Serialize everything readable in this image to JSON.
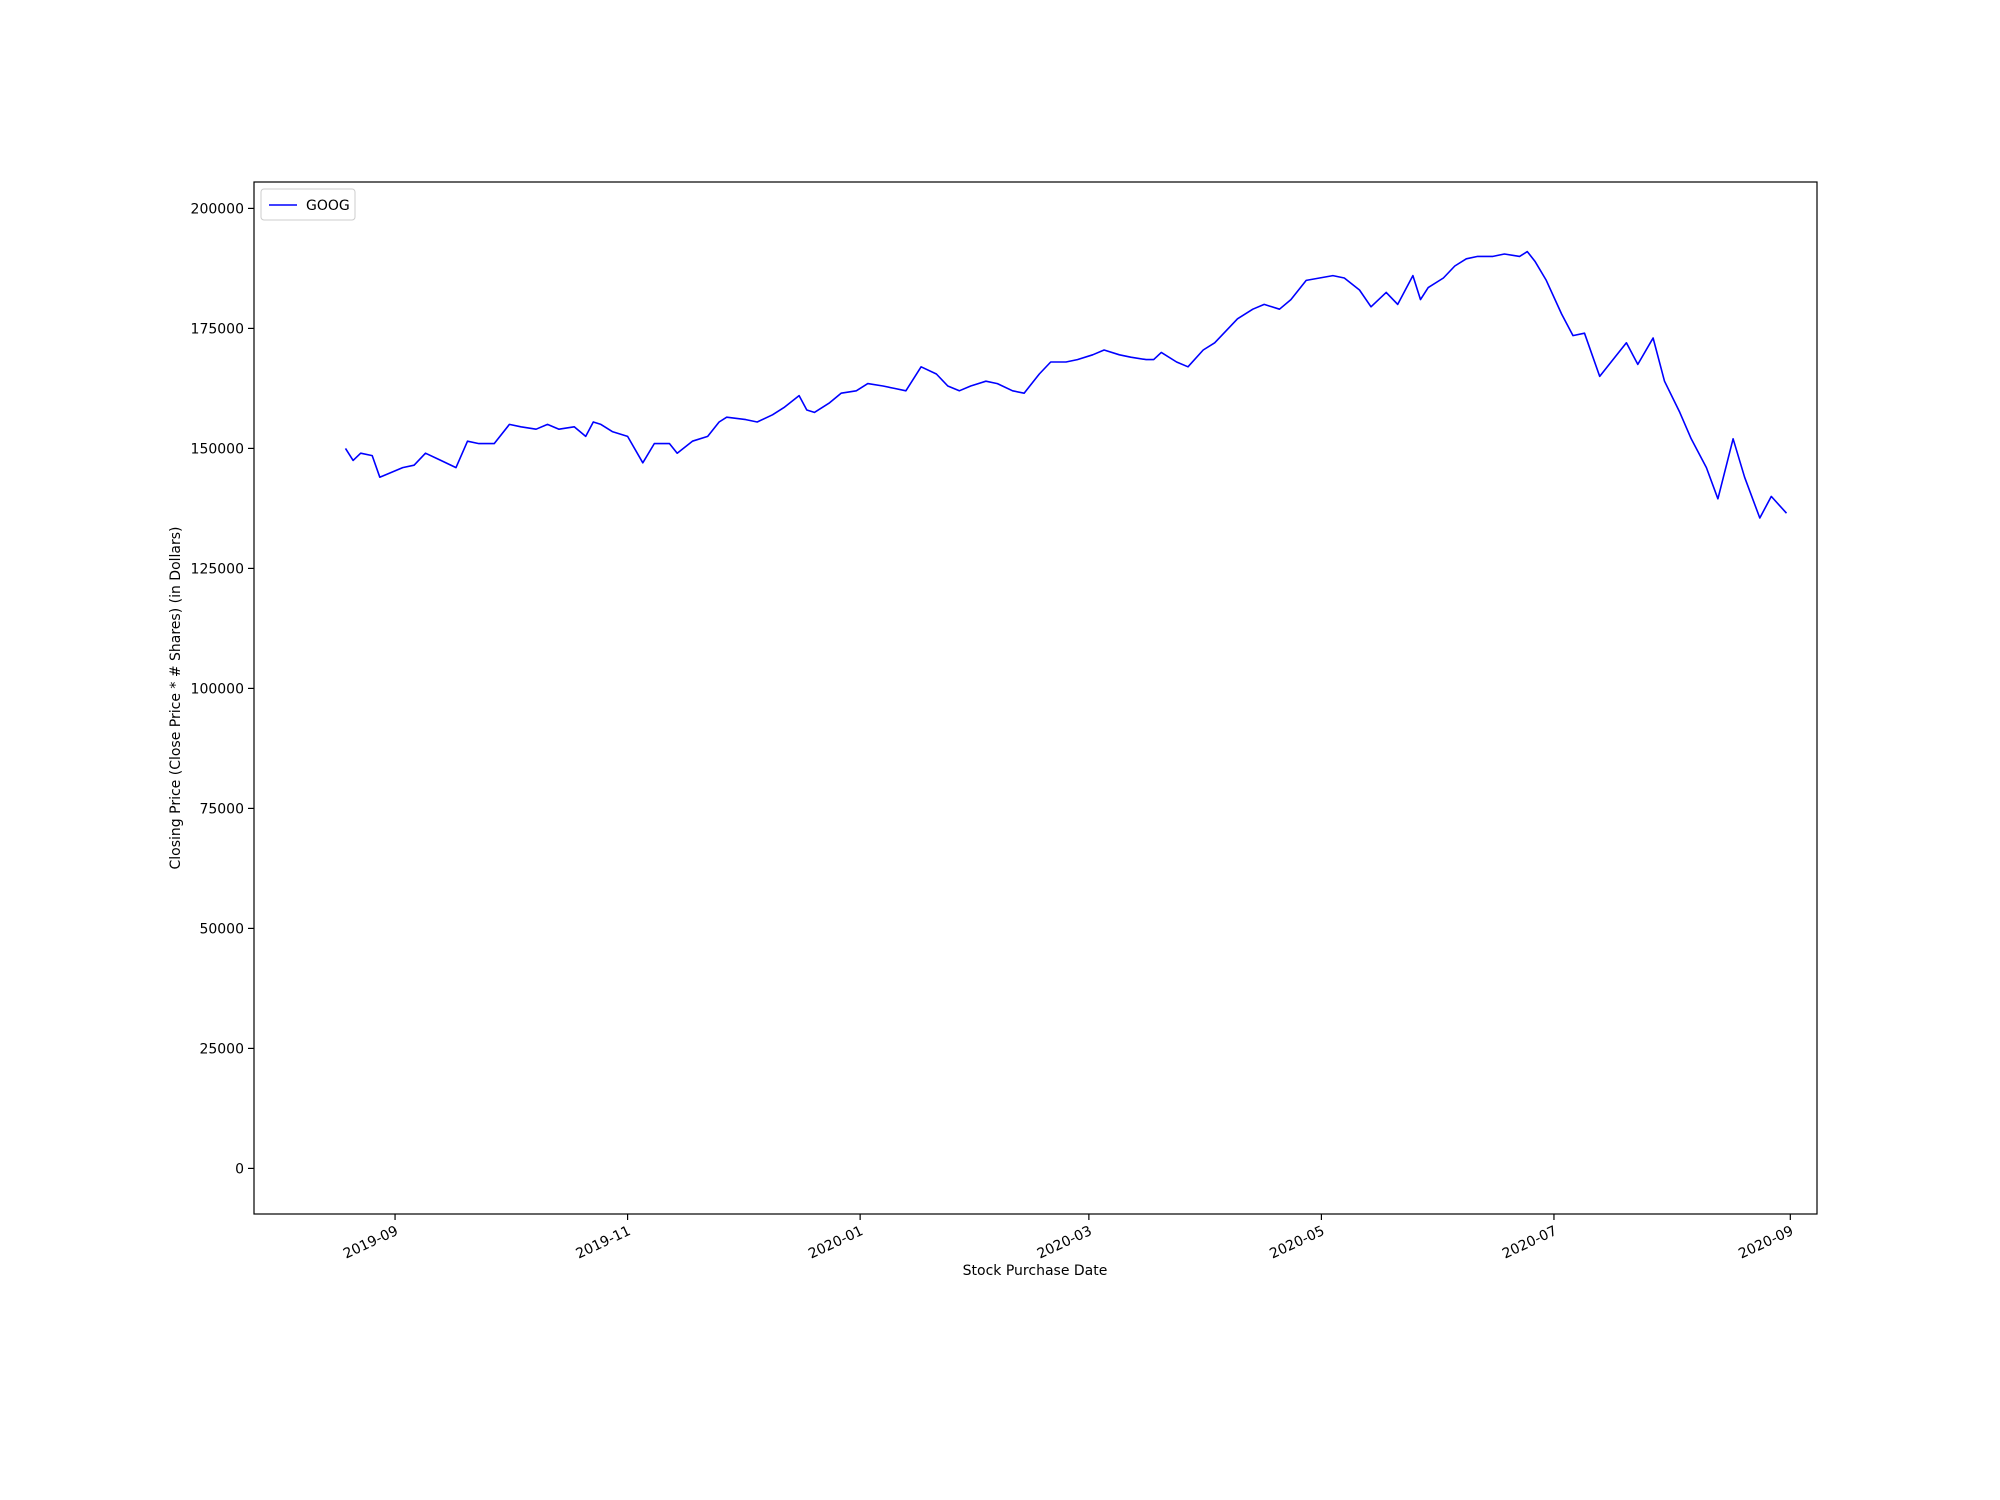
{
  "chart_data": {
    "type": "line",
    "title": "",
    "xlabel": "Stock Purchase Date",
    "ylabel": "Closing Price (Close Price * # Shares) (in Dollars)",
    "xlim": [
      "2019-07-26",
      "2020-09-08"
    ],
    "ylim": [
      -9500,
      205500
    ],
    "x_ticks": [
      "2019-09",
      "2019-11",
      "2020-01",
      "2020-03",
      "2020-05",
      "2020-07",
      "2020-09"
    ],
    "y_ticks": [
      0,
      25000,
      50000,
      75000,
      100000,
      125000,
      150000,
      175000,
      200000
    ],
    "y_tick_labels": [
      "0",
      "25000",
      "50000",
      "75000",
      "100000",
      "125000",
      "150000",
      "175000",
      "200000"
    ],
    "legend": "top-left",
    "grid": false,
    "series": [
      {
        "name": "GOOG",
        "color": "#0000ff",
        "points": [
          [
            "2019-08-19",
            150000
          ],
          [
            "2019-08-21",
            147500
          ],
          [
            "2019-08-23",
            149000
          ],
          [
            "2019-08-26",
            148500
          ],
          [
            "2019-08-28",
            144000
          ],
          [
            "2019-09-03",
            146000
          ],
          [
            "2019-09-06",
            146500
          ],
          [
            "2019-09-09",
            149000
          ],
          [
            "2019-09-13",
            147500
          ],
          [
            "2019-09-17",
            146000
          ],
          [
            "2019-09-20",
            151500
          ],
          [
            "2019-09-23",
            151000
          ],
          [
            "2019-09-27",
            151000
          ],
          [
            "2019-10-01",
            155000
          ],
          [
            "2019-10-04",
            154500
          ],
          [
            "2019-10-08",
            154000
          ],
          [
            "2019-10-11",
            155000
          ],
          [
            "2019-10-14",
            154000
          ],
          [
            "2019-10-18",
            154500
          ],
          [
            "2019-10-21",
            152500
          ],
          [
            "2019-10-23",
            155500
          ],
          [
            "2019-10-25",
            155000
          ],
          [
            "2019-10-28",
            153500
          ],
          [
            "2019-11-01",
            152500
          ],
          [
            "2019-11-05",
            147000
          ],
          [
            "2019-11-08",
            151000
          ],
          [
            "2019-11-12",
            151000
          ],
          [
            "2019-11-14",
            149000
          ],
          [
            "2019-11-18",
            151500
          ],
          [
            "2019-11-22",
            152500
          ],
          [
            "2019-11-25",
            155500
          ],
          [
            "2019-11-27",
            156500
          ],
          [
            "2019-12-02",
            156000
          ],
          [
            "2019-12-05",
            155500
          ],
          [
            "2019-12-09",
            157000
          ],
          [
            "2019-12-12",
            158500
          ],
          [
            "2019-12-16",
            161000
          ],
          [
            "2019-12-18",
            158000
          ],
          [
            "2019-12-20",
            157500
          ],
          [
            "2019-12-24",
            159500
          ],
          [
            "2019-12-27",
            161500
          ],
          [
            "2019-12-31",
            162000
          ],
          [
            "2020-01-03",
            163500
          ],
          [
            "2020-01-07",
            163000
          ],
          [
            "2020-01-10",
            162500
          ],
          [
            "2020-01-13",
            162000
          ],
          [
            "2020-01-15",
            164500
          ],
          [
            "2020-01-17",
            167000
          ],
          [
            "2020-01-21",
            165500
          ],
          [
            "2020-01-24",
            163000
          ],
          [
            "2020-01-27",
            162000
          ],
          [
            "2020-01-30",
            163000
          ],
          [
            "2020-02-03",
            164000
          ],
          [
            "2020-02-06",
            163500
          ],
          [
            "2020-02-10",
            162000
          ],
          [
            "2020-02-13",
            161500
          ],
          [
            "2020-02-17",
            165500
          ],
          [
            "2020-02-20",
            168000
          ],
          [
            "2020-02-24",
            168000
          ],
          [
            "2020-02-27",
            168500
          ],
          [
            "2020-03-02",
            169500
          ],
          [
            "2020-03-05",
            170500
          ],
          [
            "2020-03-09",
            169500
          ],
          [
            "2020-03-12",
            169000
          ],
          [
            "2020-03-16",
            168500
          ],
          [
            "2020-03-18",
            168500
          ],
          [
            "2020-03-20",
            170000
          ],
          [
            "2020-03-24",
            168000
          ],
          [
            "2020-03-27",
            167000
          ],
          [
            "2020-03-31",
            170500
          ],
          [
            "2020-04-03",
            172000
          ],
          [
            "2020-04-06",
            174500
          ],
          [
            "2020-04-09",
            177000
          ],
          [
            "2020-04-13",
            179000
          ],
          [
            "2020-04-16",
            180000
          ],
          [
            "2020-04-20",
            179000
          ],
          [
            "2020-04-23",
            181000
          ],
          [
            "2020-04-27",
            185000
          ],
          [
            "2020-05-04",
            186000
          ],
          [
            "2020-05-07",
            185500
          ],
          [
            "2020-05-11",
            183000
          ],
          [
            "2020-05-14",
            179500
          ],
          [
            "2020-05-18",
            182500
          ],
          [
            "2020-05-21",
            180000
          ],
          [
            "2020-05-25",
            186000
          ],
          [
            "2020-05-27",
            181000
          ],
          [
            "2020-05-29",
            183500
          ],
          [
            "2020-06-02",
            185500
          ],
          [
            "2020-06-05",
            188000
          ],
          [
            "2020-06-08",
            189500
          ],
          [
            "2020-06-11",
            190000
          ],
          [
            "2020-06-15",
            190000
          ],
          [
            "2020-06-18",
            190500
          ],
          [
            "2020-06-22",
            190000
          ],
          [
            "2020-06-24",
            191000
          ],
          [
            "2020-06-26",
            189000
          ],
          [
            "2020-06-29",
            185000
          ],
          [
            "2020-07-03",
            178000
          ],
          [
            "2020-07-06",
            173500
          ],
          [
            "2020-07-09",
            174000
          ],
          [
            "2020-07-13",
            165000
          ],
          [
            "2020-07-16",
            168000
          ],
          [
            "2020-07-20",
            172000
          ],
          [
            "2020-07-23",
            167500
          ],
          [
            "2020-07-27",
            173000
          ],
          [
            "2020-07-30",
            164000
          ],
          [
            "2020-08-03",
            157500
          ],
          [
            "2020-08-06",
            152000
          ],
          [
            "2020-08-10",
            146000
          ],
          [
            "2020-08-13",
            139500
          ],
          [
            "2020-08-17",
            152000
          ],
          [
            "2020-08-20",
            144000
          ],
          [
            "2020-08-24",
            135500
          ],
          [
            "2020-08-27",
            140000
          ],
          [
            "2020-08-31",
            136500
          ]
        ]
      }
    ]
  }
}
